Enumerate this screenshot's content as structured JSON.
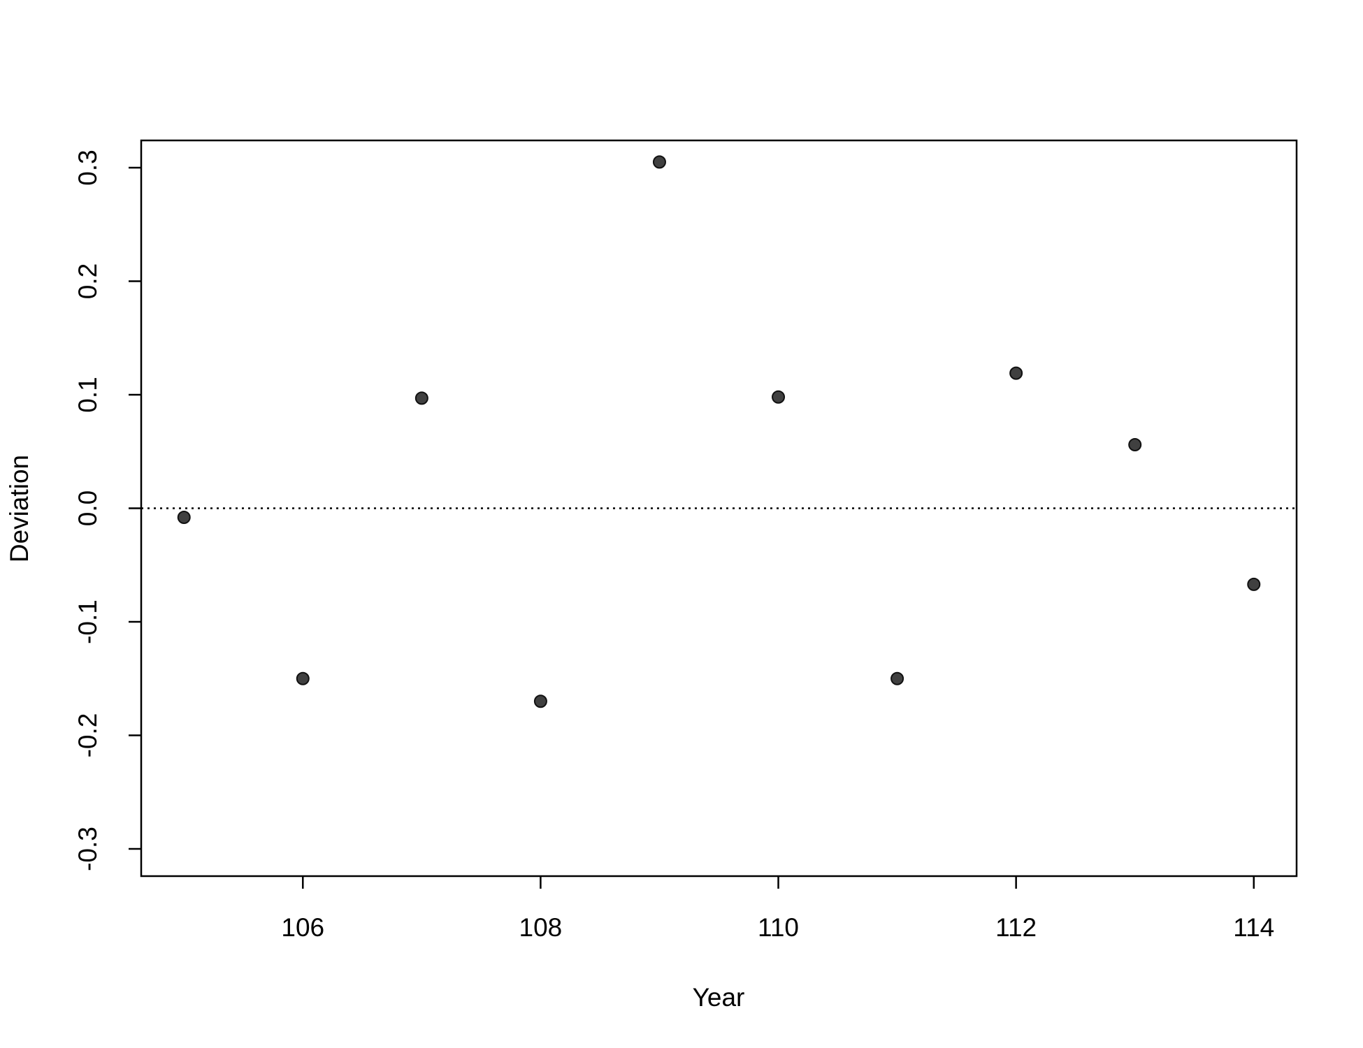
{
  "chart_data": {
    "type": "scatter",
    "x_label": "Year",
    "y_label": "Deviation",
    "x": [
      105,
      106,
      107,
      108,
      109,
      110,
      111,
      112,
      113,
      114
    ],
    "values": [
      -0.008,
      -0.15,
      0.097,
      -0.17,
      0.305,
      0.098,
      -0.15,
      0.119,
      0.056,
      -0.067
    ],
    "color": "#404040",
    "xlim": [
      104.64,
      114.36
    ],
    "xticks": [
      106,
      108,
      110,
      112,
      114
    ],
    "ylim": [
      -0.324,
      0.324
    ],
    "yticks": [
      -0.3,
      -0.2,
      -0.1,
      {
        "value": 0,
        "label": "0.0"
      },
      0.1,
      0.2,
      0.3
    ],
    "reference_line": 0
  }
}
